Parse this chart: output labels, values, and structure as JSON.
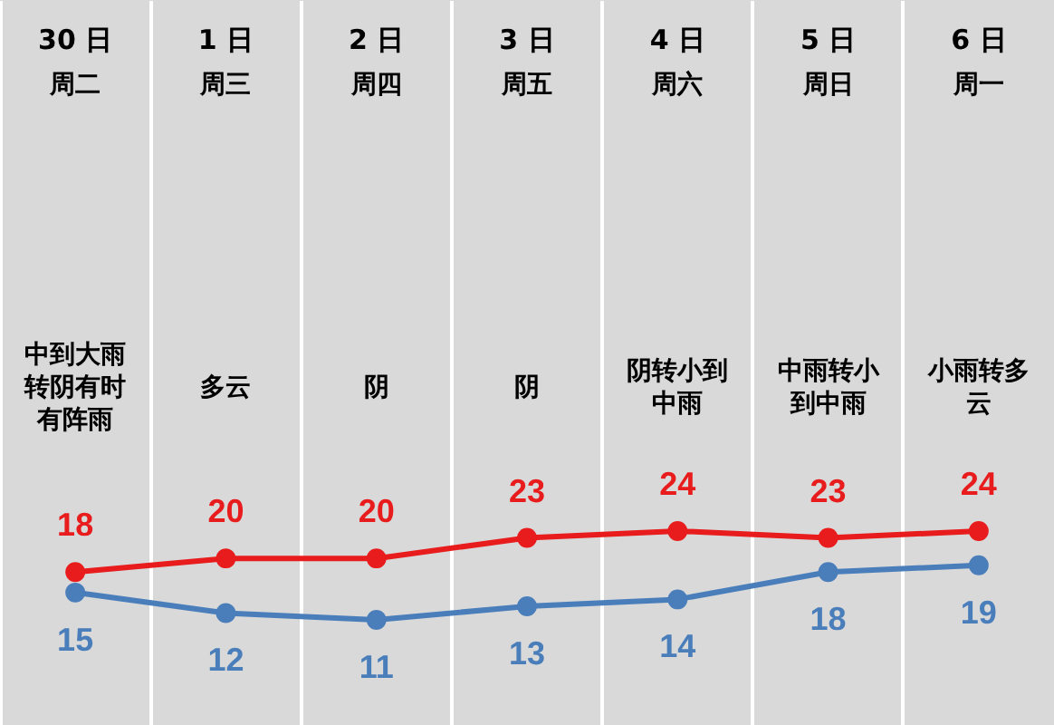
{
  "chart_data": {
    "type": "line",
    "categories": [
      "30 日",
      "1 日",
      "2 日",
      "3 日",
      "4 日",
      "5 日",
      "6 日"
    ],
    "series": [
      {
        "color": "#e81c1c",
        "values": [
          18,
          20,
          20,
          23,
          24,
          23,
          24
        ]
      },
      {
        "color": "#4a7ebb",
        "values": [
          15,
          12,
          11,
          13,
          14,
          18,
          19
        ]
      }
    ],
    "annotations": [
      "周二",
      "周三",
      "周四",
      "周五",
      "周六",
      "周日",
      "周一",
      "中到大雨转阴有时有阵雨",
      "多云",
      "阴",
      "阴",
      "阴转小到中雨",
      "中雨转小到中雨",
      "小雨转多云"
    ],
    "data_labels": true,
    "marker": "circle",
    "line_style": "solid",
    "grid": "x"
  }
}
